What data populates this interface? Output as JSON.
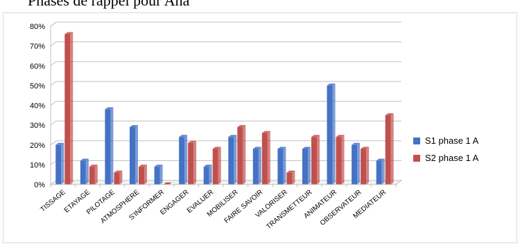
{
  "heading": "Phases de rappel pour Ana",
  "colors": {
    "s1": "#4472C4",
    "s2": "#C0504D",
    "grid": "#bfbfbf"
  },
  "chart_data": {
    "type": "bar",
    "categories": [
      "TISSAGE",
      "ETAYAGE",
      "PILOTAGE",
      "ATMOSPHERE",
      "S'INFORMER",
      "ENGAGER",
      "EVALUER",
      "MOBILISER",
      "FAIRE SAVOIR",
      "VALORISER",
      "TRANSMETTEUR",
      "ANIMATEUR",
      "OBSERVATEUR",
      "MEDIATEUR"
    ],
    "series": [
      {
        "name": "S1 phase 1 A",
        "values": [
          20,
          12,
          38,
          29,
          9,
          24,
          9,
          24,
          18,
          18,
          18,
          50,
          20,
          12
        ]
      },
      {
        "name": "S2 phase 1 A",
        "values": [
          76,
          9,
          6,
          9,
          0,
          21,
          18,
          29,
          26,
          6,
          24,
          24,
          18,
          35
        ]
      }
    ],
    "yticks": [
      "0%",
      "10%",
      "20%",
      "30%",
      "40%",
      "50%",
      "60%",
      "70%",
      "80%"
    ],
    "ylim": [
      0,
      80
    ],
    "legend_position": "right",
    "grid": true
  }
}
